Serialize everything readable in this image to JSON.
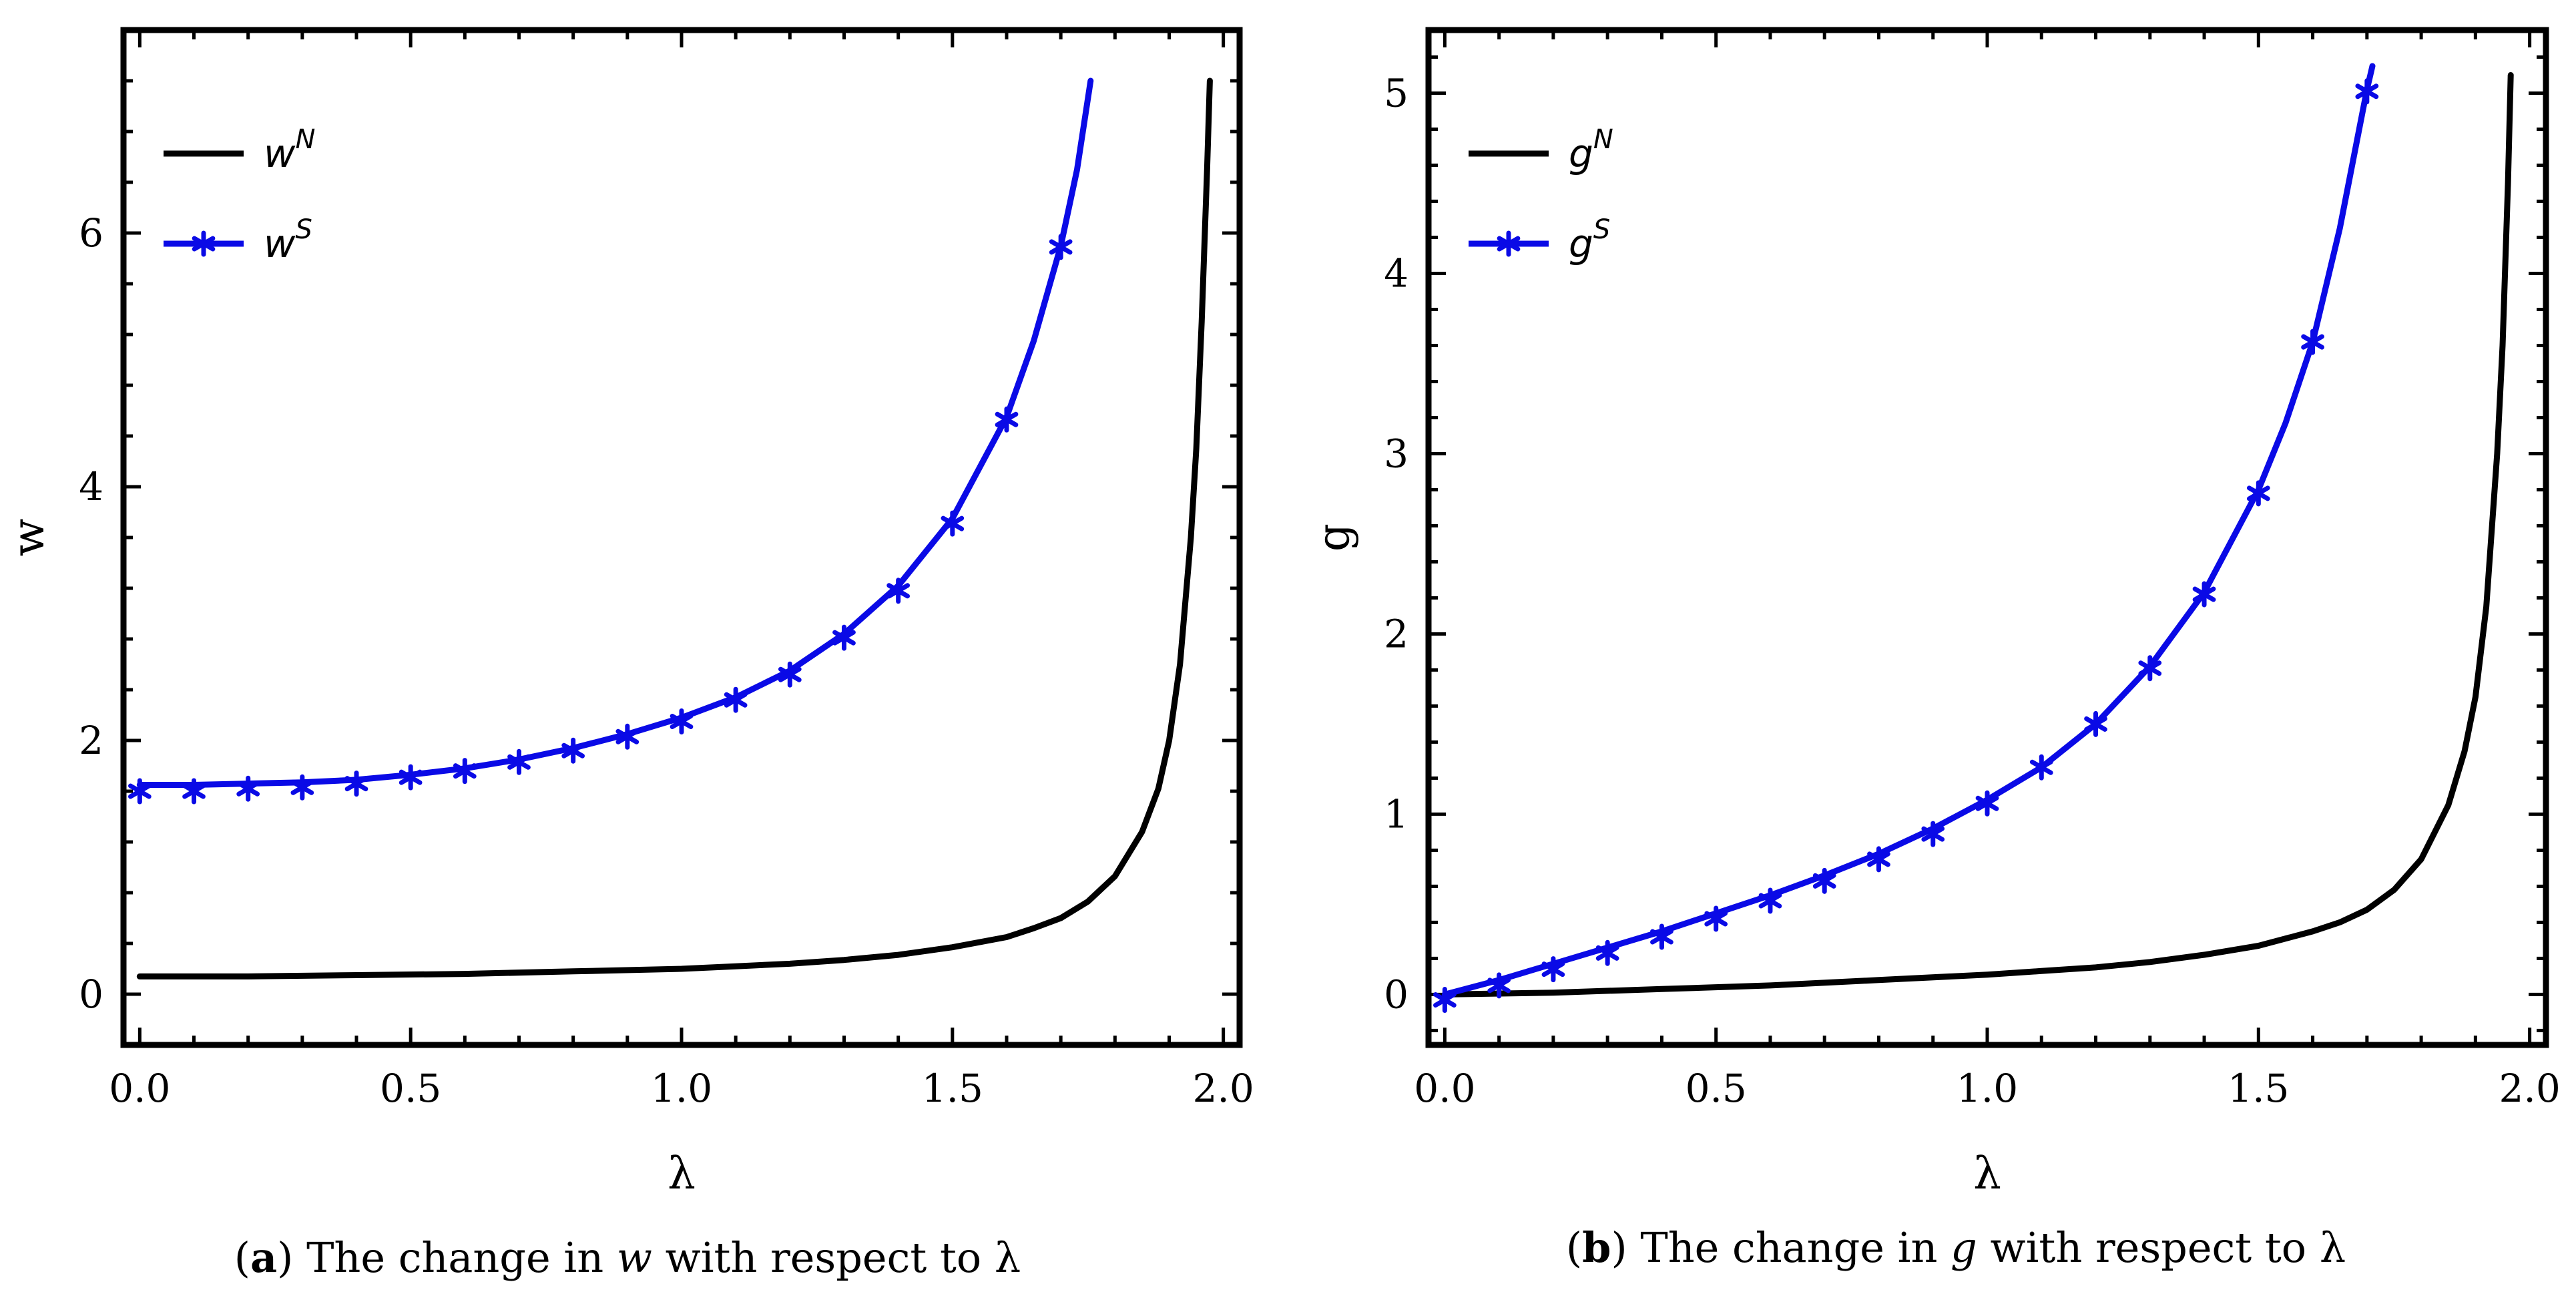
{
  "chart_data": [
    {
      "type": "line",
      "xlabel": "λ",
      "ylabel": "w",
      "xlim": [
        -0.03,
        2.03
      ],
      "ylim": [
        -0.4,
        7.6
      ],
      "xticks": [
        0.0,
        0.5,
        1.0,
        1.5,
        2.0
      ],
      "xtick_labels": [
        "0.0",
        "0.5",
        "1.0",
        "1.5",
        "2.0"
      ],
      "yticks": [
        0,
        2,
        4,
        6
      ],
      "ytick_labels": [
        "0",
        "2",
        "4",
        "6"
      ],
      "legend": [
        {
          "base": "w",
          "sup": "N",
          "color": "#000000",
          "marker": "none"
        },
        {
          "base": "w",
          "sup": "S",
          "color": "#0a0ae6",
          "marker": "asterisk"
        }
      ],
      "legend_position": "top-left",
      "caption": {
        "label": "a",
        "pre": ") The change in ",
        "symbol": "w",
        "post": " with respect to ",
        "var": "λ"
      },
      "series": [
        {
          "name": "wN",
          "color": "#000000",
          "x": [
            0.0,
            0.2,
            0.4,
            0.6,
            0.8,
            1.0,
            1.1,
            1.2,
            1.3,
            1.4,
            1.5,
            1.6,
            1.65,
            1.7,
            1.75,
            1.8,
            1.85,
            1.88,
            1.9,
            1.92,
            1.94,
            1.95,
            1.96,
            1.97,
            1.975
          ],
          "y": [
            0.14,
            0.14,
            0.15,
            0.16,
            0.18,
            0.2,
            0.22,
            0.24,
            0.27,
            0.31,
            0.37,
            0.45,
            0.52,
            0.6,
            0.73,
            0.93,
            1.28,
            1.62,
            2.0,
            2.6,
            3.6,
            4.3,
            5.3,
            6.5,
            7.2
          ]
        },
        {
          "name": "wS",
          "color": "#0a0ae6",
          "x": [
            0.0,
            0.1,
            0.2,
            0.3,
            0.4,
            0.5,
            0.6,
            0.7,
            0.8,
            0.9,
            1.0,
            1.1,
            1.2,
            1.3,
            1.4,
            1.5,
            1.6,
            1.65,
            1.7,
            1.73,
            1.755
          ],
          "y": [
            1.65,
            1.65,
            1.66,
            1.67,
            1.69,
            1.73,
            1.78,
            1.85,
            1.94,
            2.05,
            2.18,
            2.34,
            2.55,
            2.84,
            3.22,
            3.75,
            4.55,
            5.15,
            5.9,
            6.5,
            7.2
          ],
          "markers_x": [
            0.0,
            0.1,
            0.2,
            0.3,
            0.4,
            0.5,
            0.6,
            0.7,
            0.8,
            0.9,
            1.0,
            1.1,
            1.2,
            1.3,
            1.4,
            1.5,
            1.6,
            1.7
          ],
          "markers_y": [
            1.6,
            1.6,
            1.62,
            1.63,
            1.66,
            1.71,
            1.76,
            1.83,
            1.92,
            2.03,
            2.15,
            2.32,
            2.52,
            2.81,
            3.18,
            3.71,
            4.53,
            5.89
          ]
        }
      ]
    },
    {
      "type": "line",
      "xlabel": "λ",
      "ylabel": "g",
      "xlim": [
        -0.03,
        2.03
      ],
      "ylim": [
        -0.28,
        5.35
      ],
      "xticks": [
        0.0,
        0.5,
        1.0,
        1.5,
        2.0
      ],
      "xtick_labels": [
        "0.0",
        "0.5",
        "1.0",
        "1.5",
        "2.0"
      ],
      "yticks": [
        0,
        1,
        2,
        3,
        4,
        5
      ],
      "ytick_labels": [
        "0",
        "1",
        "2",
        "3",
        "4",
        "5"
      ],
      "legend": [
        {
          "base": "g",
          "sup": "N",
          "color": "#000000",
          "marker": "none"
        },
        {
          "base": "g",
          "sup": "S",
          "color": "#0a0ae6",
          "marker": "asterisk"
        }
      ],
      "legend_position": "top-left",
      "caption": {
        "label": "b",
        "pre": ") The change in ",
        "symbol": "g",
        "post": " with respect to ",
        "var": "λ"
      },
      "series": [
        {
          "name": "gN",
          "color": "#000000",
          "x": [
            0.0,
            0.2,
            0.4,
            0.6,
            0.8,
            1.0,
            1.1,
            1.2,
            1.3,
            1.4,
            1.5,
            1.6,
            1.65,
            1.7,
            1.75,
            1.8,
            1.85,
            1.88,
            1.9,
            1.92,
            1.94,
            1.95,
            1.96,
            1.965
          ],
          "y": [
            0.0,
            0.01,
            0.03,
            0.05,
            0.08,
            0.11,
            0.13,
            0.15,
            0.18,
            0.22,
            0.27,
            0.35,
            0.4,
            0.47,
            0.58,
            0.75,
            1.05,
            1.35,
            1.65,
            2.15,
            3.0,
            3.6,
            4.5,
            5.1
          ]
        },
        {
          "name": "gS",
          "color": "#0a0ae6",
          "x": [
            0.0,
            0.1,
            0.2,
            0.3,
            0.4,
            0.5,
            0.6,
            0.7,
            0.8,
            0.9,
            1.0,
            1.1,
            1.2,
            1.3,
            1.4,
            1.5,
            1.55,
            1.6,
            1.65,
            1.7,
            1.71
          ],
          "y": [
            0.0,
            0.08,
            0.17,
            0.26,
            0.35,
            0.45,
            0.55,
            0.66,
            0.78,
            0.92,
            1.08,
            1.26,
            1.5,
            1.82,
            2.23,
            2.8,
            3.17,
            3.62,
            4.25,
            5.02,
            5.15
          ],
          "markers_x": [
            0.0,
            0.1,
            0.2,
            0.3,
            0.4,
            0.5,
            0.6,
            0.7,
            0.8,
            0.9,
            1.0,
            1.1,
            1.2,
            1.3,
            1.4,
            1.5,
            1.6,
            1.7
          ],
          "markers_y": [
            -0.03,
            0.05,
            0.14,
            0.23,
            0.32,
            0.42,
            0.52,
            0.63,
            0.75,
            0.89,
            1.06,
            1.26,
            1.5,
            1.81,
            2.22,
            2.78,
            3.62,
            5.01
          ]
        }
      ]
    }
  ]
}
